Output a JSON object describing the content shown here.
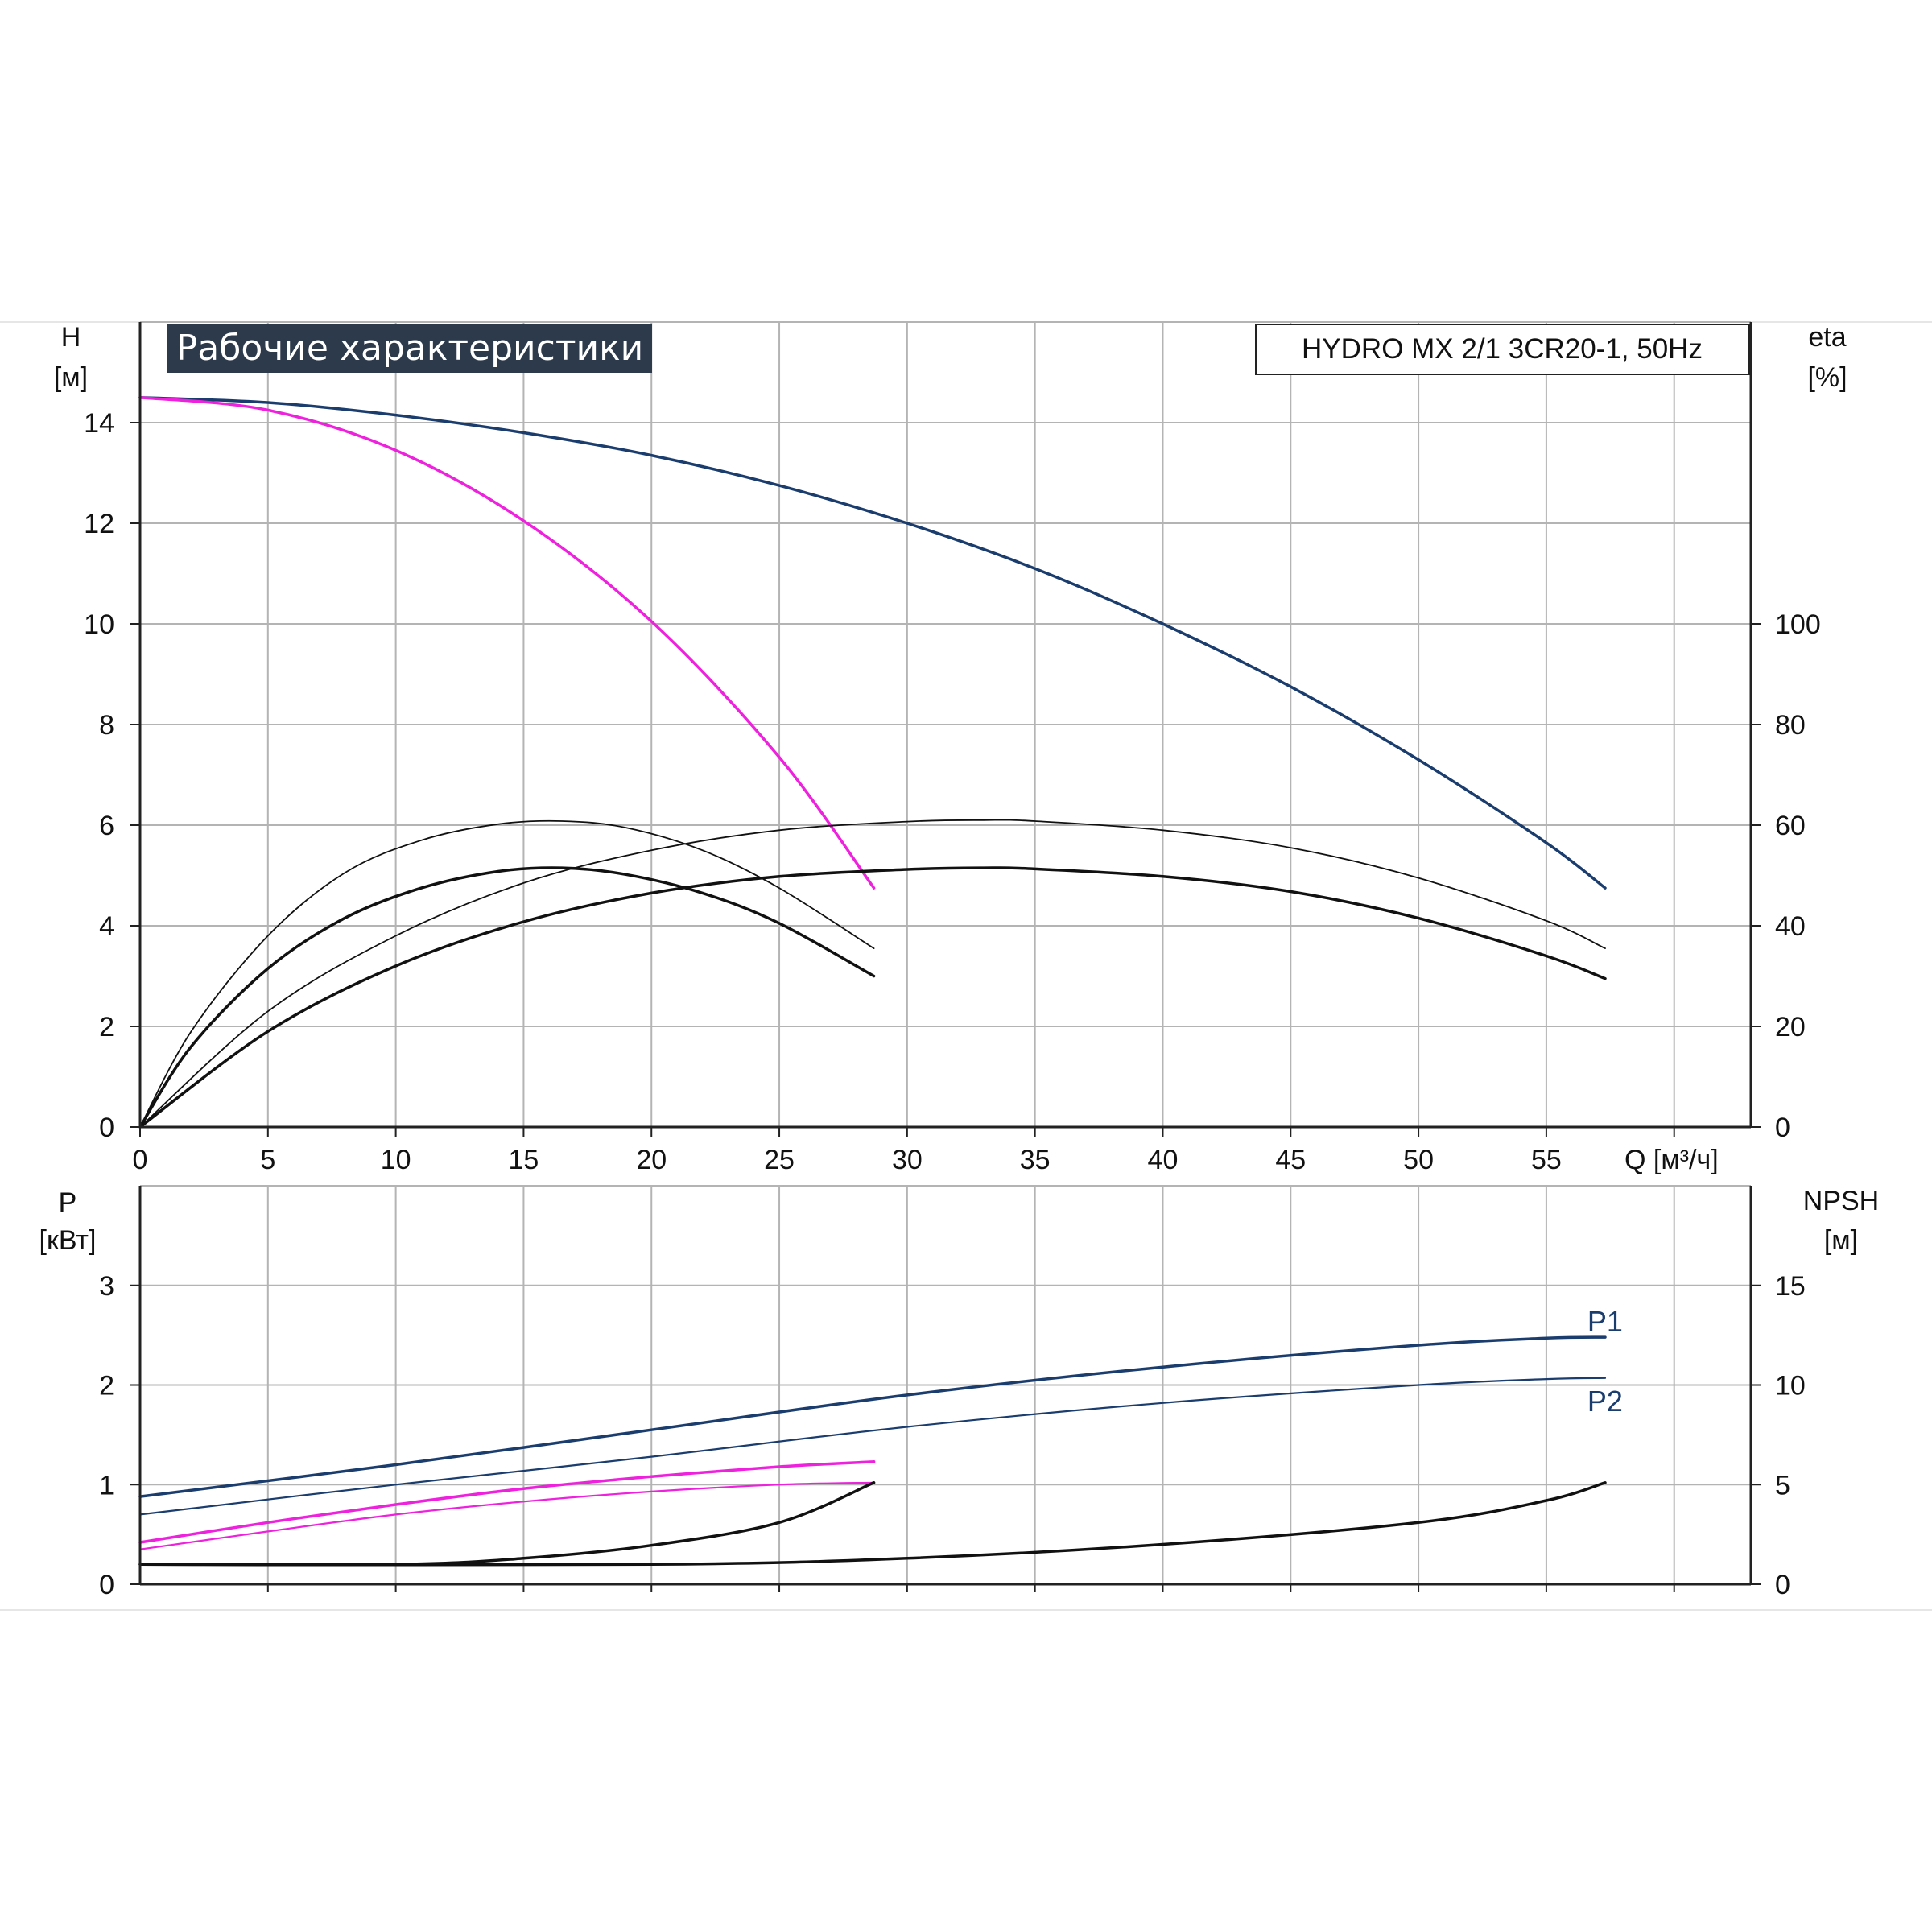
{
  "chart_data": {
    "title": "Рабочие характеристики",
    "model": "HYDRO MX 2/1 3CR20-1, 50Hz",
    "colors": {
      "blue": "#1b3d6e",
      "magenta": "#ee22dd",
      "black": "#111111",
      "title_bg": "#2c3a4c",
      "grid": "#b4b4b4"
    },
    "top": {
      "type": "line",
      "x_label": "Q [м³/ч]",
      "left_axis": {
        "label_line1": "H",
        "label_line2": "[м]",
        "range": [
          0,
          16
        ],
        "ticks": [
          "0",
          "2",
          "4",
          "6",
          "8",
          "10",
          "12",
          "14"
        ]
      },
      "right_axis": {
        "label_line1": "eta",
        "label_line2": "[%]",
        "range": [
          0,
          160
        ],
        "ticks": [
          "0",
          "20",
          "40",
          "60",
          "80",
          "100"
        ]
      },
      "x_range": [
        0,
        63
      ],
      "x_ticks": [
        "0",
        "5",
        "10",
        "15",
        "20",
        "25",
        "30",
        "35",
        "40",
        "45",
        "50",
        "55"
      ],
      "series": [
        {
          "color": "blue",
          "width": 3.5,
          "points": [
            [
              0,
              14.5
            ],
            [
              5,
              14.4
            ],
            [
              10,
              14.15
            ],
            [
              15,
              13.8
            ],
            [
              20,
              13.35
            ],
            [
              25,
              12.75
            ],
            [
              30,
              12.0
            ],
            [
              35,
              11.1
            ],
            [
              40,
              10.0
            ],
            [
              45,
              8.75
            ],
            [
              50,
              7.3
            ],
            [
              55,
              5.65
            ],
            [
              57.3,
              4.75
            ]
          ]
        },
        {
          "color": "magenta",
          "width": 3.5,
          "points": [
            [
              0,
              14.5
            ],
            [
              5,
              14.25
            ],
            [
              10,
              13.45
            ],
            [
              15,
              12.05
            ],
            [
              20,
              10.05
            ],
            [
              25,
              7.35
            ],
            [
              28.7,
              4.75
            ]
          ]
        },
        {
          "color": "black",
          "width": 1.8,
          "points": [
            [
              0,
              0
            ],
            [
              2,
              1.9
            ],
            [
              5,
              3.8
            ],
            [
              8,
              5.05
            ],
            [
              11,
              5.7
            ],
            [
              14,
              6.02
            ],
            [
              16.5,
              6.08
            ],
            [
              19,
              5.95
            ],
            [
              22,
              5.5
            ],
            [
              25,
              4.75
            ],
            [
              28.7,
              3.55
            ]
          ]
        },
        {
          "color": "black",
          "width": 3.5,
          "points": [
            [
              0,
              0
            ],
            [
              2,
              1.6
            ],
            [
              5,
              3.15
            ],
            [
              8,
              4.15
            ],
            [
              11,
              4.75
            ],
            [
              14,
              5.08
            ],
            [
              16.5,
              5.15
            ],
            [
              19,
              5.02
            ],
            [
              22,
              4.65
            ],
            [
              25,
              4.05
            ],
            [
              28.7,
              3.0
            ]
          ]
        },
        {
          "color": "black",
          "width": 1.8,
          "points": [
            [
              0,
              0
            ],
            [
              5,
              2.3
            ],
            [
              10,
              3.8
            ],
            [
              15,
              4.85
            ],
            [
              20,
              5.5
            ],
            [
              25,
              5.9
            ],
            [
              30,
              6.07
            ],
            [
              33,
              6.1
            ],
            [
              35,
              6.08
            ],
            [
              40,
              5.9
            ],
            [
              45,
              5.55
            ],
            [
              50,
              4.95
            ],
            [
              55,
              4.1
            ],
            [
              57.3,
              3.55
            ]
          ]
        },
        {
          "color": "black",
          "width": 3.5,
          "points": [
            [
              0,
              0
            ],
            [
              5,
              1.9
            ],
            [
              10,
              3.2
            ],
            [
              15,
              4.08
            ],
            [
              20,
              4.65
            ],
            [
              25,
              4.98
            ],
            [
              30,
              5.12
            ],
            [
              33,
              5.15
            ],
            [
              35,
              5.13
            ],
            [
              40,
              4.98
            ],
            [
              45,
              4.68
            ],
            [
              50,
              4.15
            ],
            [
              55,
              3.4
            ],
            [
              57.3,
              2.95
            ]
          ]
        }
      ]
    },
    "bottom": {
      "type": "line",
      "left_axis": {
        "label_line1": "P",
        "label_line2": "[кВт]",
        "range": [
          0,
          4
        ],
        "ticks": [
          "0",
          "1",
          "2",
          "3"
        ]
      },
      "right_axis": {
        "label_line1": "NPSH",
        "label_line2": "[м]",
        "range": [
          0,
          20
        ],
        "ticks": [
          "0",
          "5",
          "10",
          "15"
        ]
      },
      "x_range": [
        0,
        63
      ],
      "series": [
        {
          "color": "blue",
          "width": 3.5,
          "points": [
            [
              0,
              0.88
            ],
            [
              10,
              1.2
            ],
            [
              20,
              1.55
            ],
            [
              30,
              1.9
            ],
            [
              40,
              2.18
            ],
            [
              50,
              2.4
            ],
            [
              55,
              2.47
            ],
            [
              57.3,
              2.48
            ]
          ]
        },
        {
          "color": "blue",
          "width": 2.2,
          "points": [
            [
              0,
              0.7
            ],
            [
              10,
              1.0
            ],
            [
              20,
              1.28
            ],
            [
              30,
              1.58
            ],
            [
              40,
              1.82
            ],
            [
              50,
              2.0
            ],
            [
              55,
              2.06
            ],
            [
              57.3,
              2.07
            ]
          ]
        },
        {
          "color": "magenta",
          "width": 3.5,
          "points": [
            [
              0,
              0.42
            ],
            [
              5,
              0.62
            ],
            [
              10,
              0.8
            ],
            [
              15,
              0.96
            ],
            [
              20,
              1.08
            ],
            [
              25,
              1.18
            ],
            [
              28.7,
              1.23
            ]
          ]
        },
        {
          "color": "magenta",
          "width": 2.2,
          "points": [
            [
              0,
              0.35
            ],
            [
              5,
              0.53
            ],
            [
              10,
              0.7
            ],
            [
              15,
              0.83
            ],
            [
              20,
              0.93
            ],
            [
              25,
              1.0
            ],
            [
              28.7,
              1.02
            ]
          ]
        },
        {
          "color": "black",
          "width": 3.5,
          "points": [
            [
              0,
              0.2
            ],
            [
              10,
              0.2
            ],
            [
              15,
              0.26
            ],
            [
              20,
              0.39
            ],
            [
              25,
              0.62
            ],
            [
              28.7,
              1.02
            ]
          ]
        },
        {
          "color": "black",
          "width": 3.5,
          "points": [
            [
              0,
              0.2
            ],
            [
              20,
              0.2
            ],
            [
              30,
              0.26
            ],
            [
              40,
              0.4
            ],
            [
              50,
              0.62
            ],
            [
              55,
              0.84
            ],
            [
              57.3,
              1.02
            ]
          ]
        }
      ],
      "labels": [
        {
          "text": "P1",
          "x": 57.3,
          "y": 2.62
        },
        {
          "text": "P2",
          "x": 57.3,
          "y": 1.82
        }
      ]
    }
  }
}
